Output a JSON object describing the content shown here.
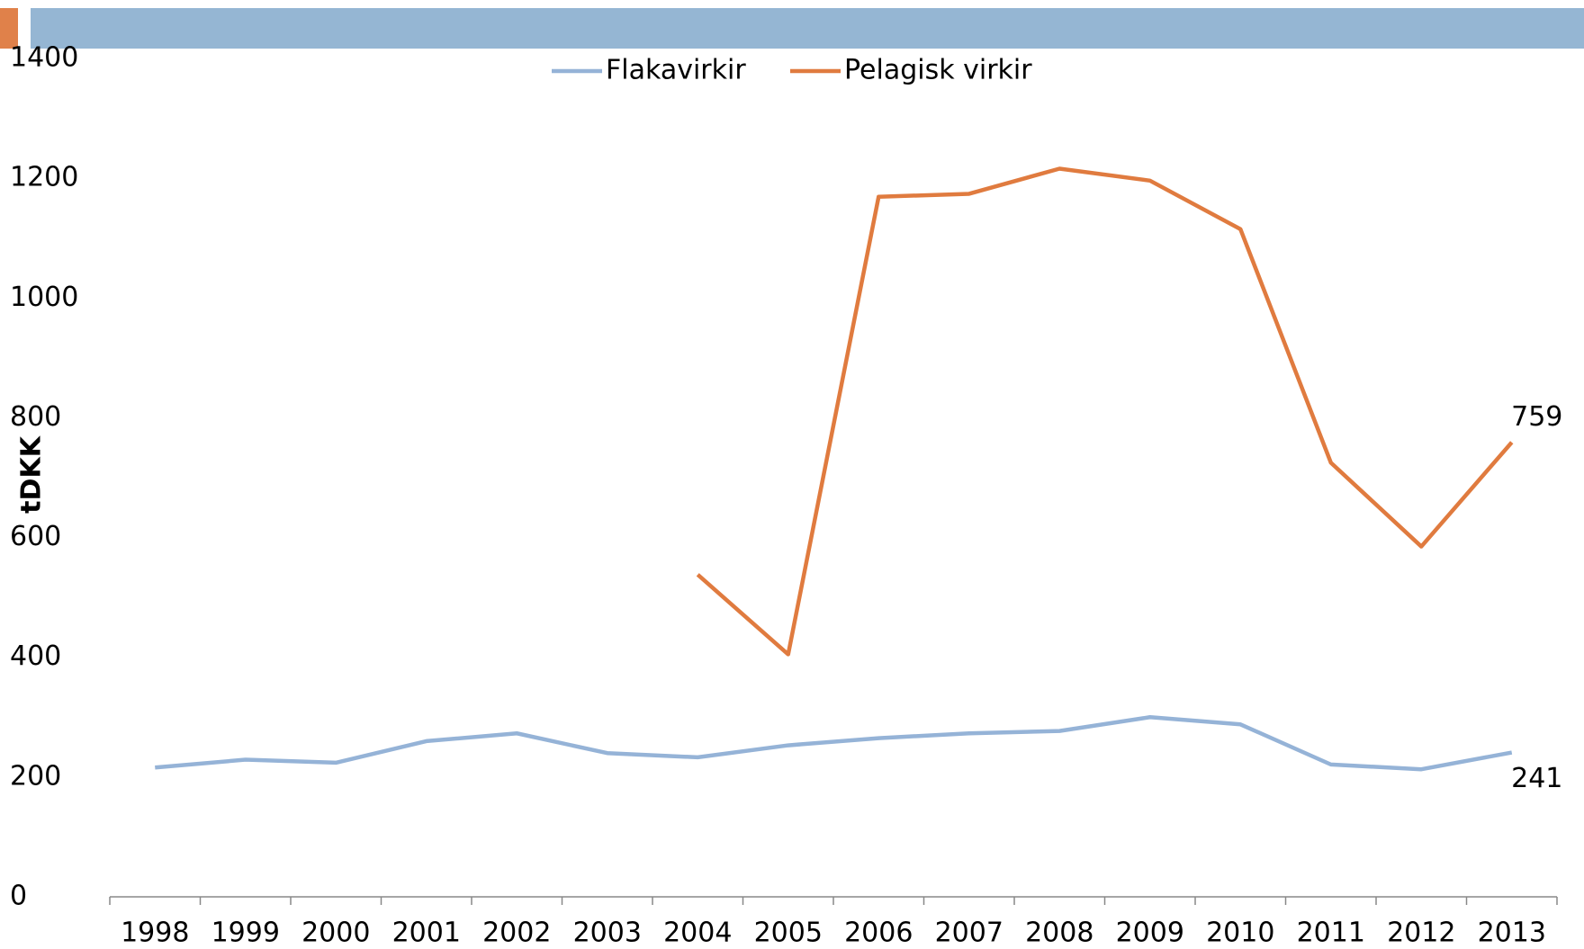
{
  "chart_data": {
    "type": "line",
    "ylabel": "tDKK",
    "categories": [
      "1998",
      "1999",
      "2000",
      "2001",
      "2002",
      "2003",
      "2004",
      "2005",
      "2006",
      "2007",
      "2008",
      "2009",
      "2010",
      "2011",
      "2012",
      "2013"
    ],
    "series": [
      {
        "name": "Flakavirkir",
        "color": "#95b3d7",
        "values": [
          216,
          229,
          224,
          260,
          273,
          240,
          233,
          253,
          265,
          273,
          277,
          300,
          288,
          221,
          213,
          241
        ]
      },
      {
        "name": "Pelagisk virkir",
        "color": "#e07b3f",
        "values": [
          null,
          null,
          null,
          null,
          null,
          null,
          538,
          405,
          1169,
          1174,
          1216,
          1196,
          1115,
          725,
          585,
          759
        ]
      }
    ],
    "ylim": [
      0,
      1400
    ],
    "yticks": [
      0,
      200,
      400,
      600,
      800,
      1000,
      1200,
      1400
    ],
    "grid": false,
    "legend": "top"
  }
}
